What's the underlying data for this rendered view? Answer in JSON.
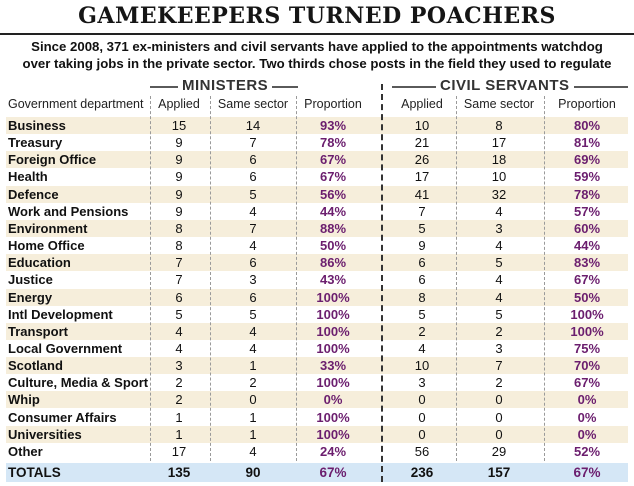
{
  "headline": "GAMEKEEPERS TURNED POACHERS",
  "subtitle_line1": "Since 2008, 371 ex-ministers and civil servants have applied to the appointments watchdog",
  "subtitle_line2": "over taking jobs in the private sector. Two thirds chose posts in the field they used to regulate",
  "group_labels": {
    "ministers": "MINISTERS",
    "civil_servants": "CIVIL SERVANTS"
  },
  "columns": {
    "department": "Government department",
    "applied": "Applied",
    "same_sector": "Same sector",
    "proportion": "Proportion"
  },
  "rows": [
    {
      "dept": "Business",
      "m_applied": "15",
      "m_same": "14",
      "m_prop": "93%",
      "c_applied": "10",
      "c_same": "8",
      "c_prop": "80%"
    },
    {
      "dept": "Treasury",
      "m_applied": "9",
      "m_same": "7",
      "m_prop": "78%",
      "c_applied": "21",
      "c_same": "17",
      "c_prop": "81%"
    },
    {
      "dept": "Foreign Office",
      "m_applied": "9",
      "m_same": "6",
      "m_prop": "67%",
      "c_applied": "26",
      "c_same": "18",
      "c_prop": "69%"
    },
    {
      "dept": "Health",
      "m_applied": "9",
      "m_same": "6",
      "m_prop": "67%",
      "c_applied": "17",
      "c_same": "10",
      "c_prop": "59%"
    },
    {
      "dept": "Defence",
      "m_applied": "9",
      "m_same": "5",
      "m_prop": "56%",
      "c_applied": "41",
      "c_same": "32",
      "c_prop": "78%"
    },
    {
      "dept": "Work and Pensions",
      "m_applied": "9",
      "m_same": "4",
      "m_prop": "44%",
      "c_applied": "7",
      "c_same": "4",
      "c_prop": "57%"
    },
    {
      "dept": "Environment",
      "m_applied": "8",
      "m_same": "7",
      "m_prop": "88%",
      "c_applied": "5",
      "c_same": "3",
      "c_prop": "60%"
    },
    {
      "dept": "Home Office",
      "m_applied": "8",
      "m_same": "4",
      "m_prop": "50%",
      "c_applied": "9",
      "c_same": "4",
      "c_prop": "44%"
    },
    {
      "dept": "Education",
      "m_applied": "7",
      "m_same": "6",
      "m_prop": "86%",
      "c_applied": "6",
      "c_same": "5",
      "c_prop": "83%"
    },
    {
      "dept": "Justice",
      "m_applied": "7",
      "m_same": "3",
      "m_prop": "43%",
      "c_applied": "6",
      "c_same": "4",
      "c_prop": "67%"
    },
    {
      "dept": "Energy",
      "m_applied": "6",
      "m_same": "6",
      "m_prop": "100%",
      "c_applied": "8",
      "c_same": "4",
      "c_prop": "50%"
    },
    {
      "dept": "Intl Development",
      "m_applied": "5",
      "m_same": "5",
      "m_prop": "100%",
      "c_applied": "5",
      "c_same": "5",
      "c_prop": "100%"
    },
    {
      "dept": "Transport",
      "m_applied": "4",
      "m_same": "4",
      "m_prop": "100%",
      "c_applied": "2",
      "c_same": "2",
      "c_prop": "100%"
    },
    {
      "dept": "Local Government",
      "m_applied": "4",
      "m_same": "4",
      "m_prop": "100%",
      "c_applied": "4",
      "c_same": "3",
      "c_prop": "75%"
    },
    {
      "dept": "Scotland",
      "m_applied": "3",
      "m_same": "1",
      "m_prop": "33%",
      "c_applied": "10",
      "c_same": "7",
      "c_prop": "70%"
    },
    {
      "dept": "Culture, Media & Sport",
      "m_applied": "2",
      "m_same": "2",
      "m_prop": "100%",
      "c_applied": "3",
      "c_same": "2",
      "c_prop": "67%"
    },
    {
      "dept": "Whip",
      "m_applied": "2",
      "m_same": "0",
      "m_prop": "0%",
      "c_applied": "0",
      "c_same": "0",
      "c_prop": "0%"
    },
    {
      "dept": "Consumer Affairs",
      "m_applied": "1",
      "m_same": "1",
      "m_prop": "100%",
      "c_applied": "0",
      "c_same": "0",
      "c_prop": "0%"
    },
    {
      "dept": "Universities",
      "m_applied": "1",
      "m_same": "1",
      "m_prop": "100%",
      "c_applied": "0",
      "c_same": "0",
      "c_prop": "0%"
    },
    {
      "dept": "Other",
      "m_applied": "17",
      "m_same": "4",
      "m_prop": "24%",
      "c_applied": "56",
      "c_same": "29",
      "c_prop": "52%"
    }
  ],
  "totals": {
    "dept": "TOTALS",
    "m_applied": "135",
    "m_same": "90",
    "m_prop": "67%",
    "c_applied": "236",
    "c_same": "157",
    "c_prop": "67%"
  },
  "colors": {
    "proportion_text": "#6b1e6e",
    "row_shade": "#f6eedb",
    "totals_bg": "#d5e7f6"
  }
}
